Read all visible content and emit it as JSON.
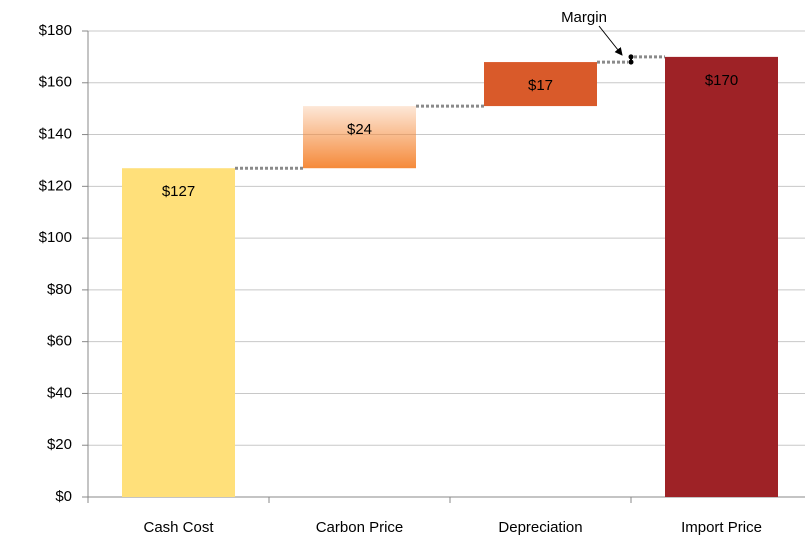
{
  "chart_data": {
    "type": "waterfall",
    "categories": [
      "Cash Cost",
      "Carbon Price",
      "Depreciation",
      "Import Price"
    ],
    "values": [
      127,
      24,
      17,
      170
    ],
    "value_labels": [
      "$127",
      "$24",
      "$17",
      "$170"
    ],
    "total": [
      false,
      false,
      false,
      true
    ],
    "colors": [
      "#ffe07a",
      "#f58a3a",
      "#d95a2a",
      "#9e2226"
    ],
    "gradient": [
      false,
      true,
      false,
      false
    ],
    "margin": {
      "label": "Margin",
      "value": 2
    },
    "ylim": [
      0,
      180
    ],
    "yticks": [
      {
        "value": 0,
        "label": "$0"
      },
      {
        "value": 20,
        "label": "$20"
      },
      {
        "value": 40,
        "label": "$40"
      },
      {
        "value": 60,
        "label": "$60"
      },
      {
        "value": 80,
        "label": "$80"
      },
      {
        "value": 100,
        "label": "$100"
      },
      {
        "value": 120,
        "label": "$120"
      },
      {
        "value": 140,
        "label": "$140"
      },
      {
        "value": 160,
        "label": "$160"
      },
      {
        "value": 180,
        "label": "$180"
      }
    ],
    "grid": true
  }
}
